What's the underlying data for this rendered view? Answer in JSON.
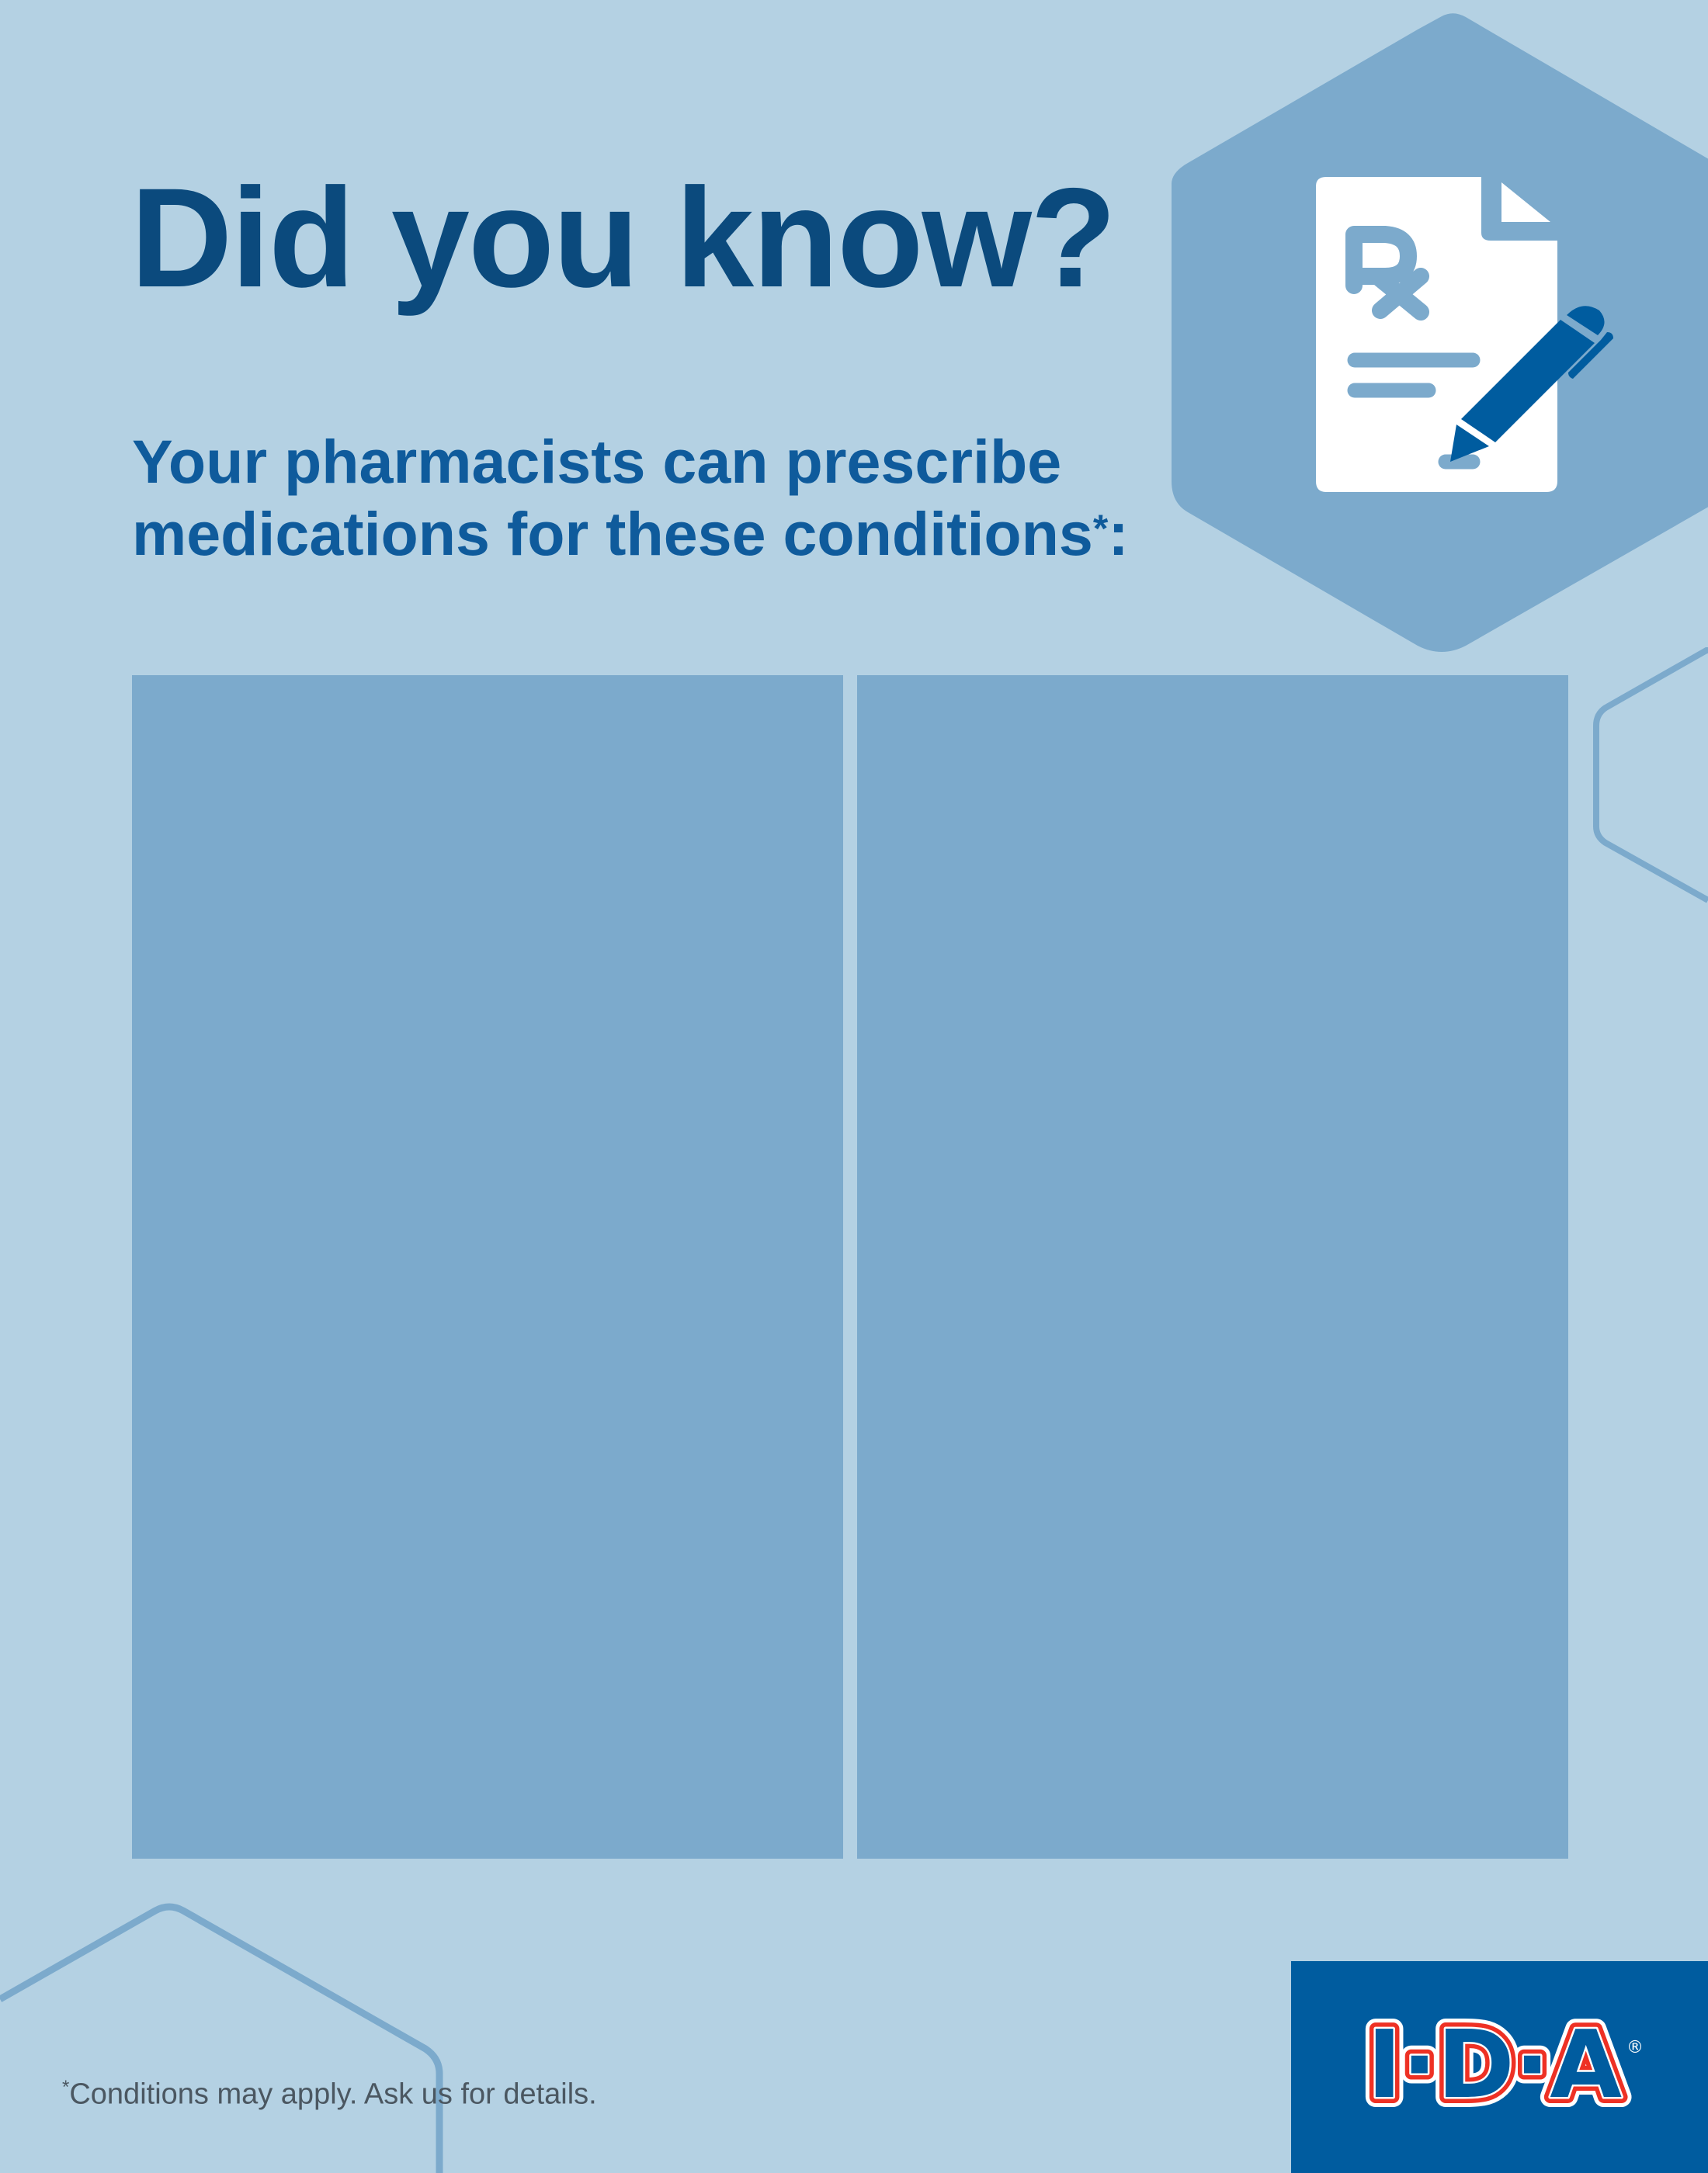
{
  "heading": {
    "title": "Did you know?",
    "subtitle_line1": "Your pharmacists can prescribe",
    "subtitle_line2": "medications for these conditions",
    "subtitle_asterisk": "*",
    "subtitle_colon": ":"
  },
  "panels": [
    {
      "content": ""
    },
    {
      "content": ""
    }
  ],
  "footnote": {
    "asterisk": "*",
    "text": "Conditions may apply. Ask us for details."
  },
  "logo": {
    "text": "I·D·A",
    "registered": "®"
  },
  "icons": {
    "hero": "prescription-document-with-pen-icon"
  },
  "colors": {
    "background": "#b4d1e3",
    "panel": "#7caacc",
    "title": "#0b4a7d",
    "subtitle": "#0f5b9c",
    "logo_background": "#005c9f",
    "logo_red": "#ee3124",
    "pen": "#005c9f"
  }
}
